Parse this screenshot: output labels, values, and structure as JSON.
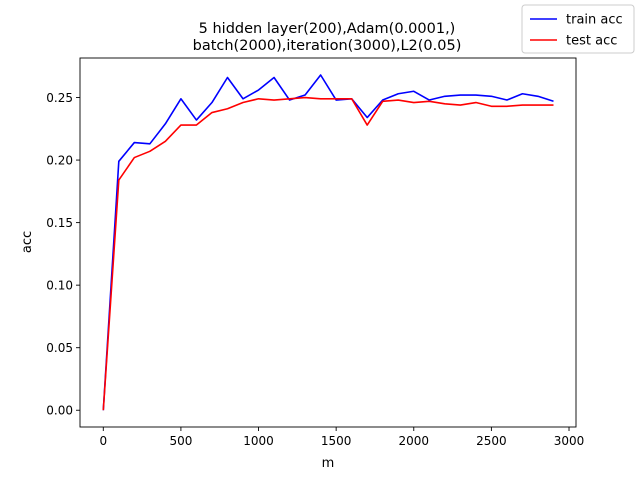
{
  "chart_data": {
    "type": "line",
    "title_lines": [
      "5 hidden layer(200),Adam(0.0001,)",
      "batch(2000),iteration(3000),L2(0.05)"
    ],
    "xlabel": "m",
    "ylabel": "acc",
    "xlim": [
      -150,
      3045
    ],
    "ylim": [
      -0.0134,
      0.2816
    ],
    "xticks": [
      0,
      500,
      1000,
      1500,
      2000,
      2500,
      3000
    ],
    "xtick_labels": [
      "0",
      "500",
      "1000",
      "1500",
      "2000",
      "2500",
      "3000"
    ],
    "yticks": [
      0.0,
      0.05,
      0.1,
      0.15,
      0.2,
      0.25
    ],
    "ytick_labels": [
      "0.00",
      "0.05",
      "0.10",
      "0.15",
      "0.20",
      "0.25"
    ],
    "grid": false,
    "legend_position": "top-right, outside axes",
    "x": [
      0,
      100,
      200,
      300,
      400,
      500,
      600,
      700,
      800,
      900,
      1000,
      1100,
      1200,
      1300,
      1400,
      1500,
      1600,
      1700,
      1800,
      1900,
      2000,
      2100,
      2200,
      2300,
      2400,
      2500,
      2600,
      2700,
      2800,
      2900
    ],
    "series": [
      {
        "name": "train acc",
        "color": "#0000ff",
        "values": [
          0.0,
          0.199,
          0.214,
          0.213,
          0.229,
          0.249,
          0.232,
          0.246,
          0.266,
          0.249,
          0.256,
          0.266,
          0.248,
          0.252,
          0.268,
          0.248,
          0.249,
          0.234,
          0.248,
          0.253,
          0.255,
          0.248,
          0.251,
          0.252,
          0.252,
          0.251,
          0.248,
          0.253,
          0.251,
          0.247
        ]
      },
      {
        "name": "test acc",
        "color": "#ff0000",
        "values": [
          0.0,
          0.184,
          0.202,
          0.207,
          0.215,
          0.228,
          0.228,
          0.238,
          0.241,
          0.246,
          0.249,
          0.248,
          0.249,
          0.25,
          0.249,
          0.249,
          0.249,
          0.228,
          0.247,
          0.248,
          0.246,
          0.247,
          0.245,
          0.244,
          0.246,
          0.243,
          0.243,
          0.244,
          0.244,
          0.244
        ]
      }
    ]
  }
}
